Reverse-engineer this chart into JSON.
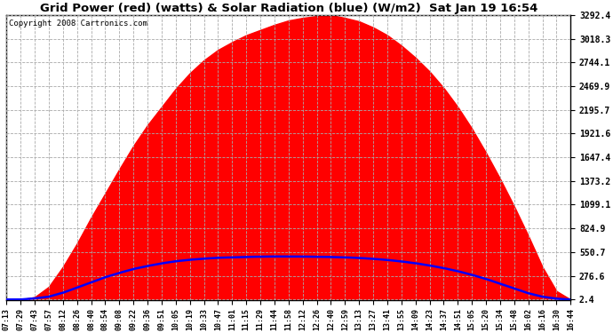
{
  "title": "Grid Power (red) (watts) & Solar Radiation (blue) (W/m2)  Sat Jan 19 16:54",
  "copyright": "Copyright 2008 Cartronics.com",
  "yticks": [
    2.4,
    276.6,
    550.7,
    824.9,
    1099.1,
    1373.2,
    1647.4,
    1921.6,
    2195.7,
    2469.9,
    2744.1,
    3018.3,
    3292.4
  ],
  "ymin": 0,
  "ymax": 3292.4,
  "x_labels": [
    "07:13",
    "07:29",
    "07:43",
    "07:57",
    "08:12",
    "08:26",
    "08:40",
    "08:54",
    "09:08",
    "09:22",
    "09:36",
    "09:51",
    "10:05",
    "10:19",
    "10:33",
    "10:47",
    "11:01",
    "11:15",
    "11:29",
    "11:44",
    "11:58",
    "12:12",
    "12:26",
    "12:40",
    "12:59",
    "13:13",
    "13:27",
    "13:41",
    "13:55",
    "14:09",
    "14:23",
    "14:37",
    "14:51",
    "15:05",
    "15:20",
    "15:34",
    "15:48",
    "16:02",
    "16:16",
    "16:30",
    "16:44"
  ],
  "bg_color": "#ffffff",
  "plot_bg_color": "#ffffff",
  "grid_color": "#cccccc",
  "red_color": "#ff0000",
  "blue_color": "#0000ff",
  "title_color": "#000000",
  "red_fill_alpha": 1.0,
  "red_vals": [
    2.4,
    2.4,
    30,
    150,
    380,
    650,
    950,
    1230,
    1510,
    1780,
    2020,
    2230,
    2440,
    2620,
    2770,
    2890,
    2980,
    3060,
    3120,
    3180,
    3230,
    3260,
    3280,
    3292,
    3260,
    3220,
    3150,
    3060,
    2940,
    2800,
    2640,
    2450,
    2230,
    1980,
    1700,
    1400,
    1080,
    740,
    380,
    100,
    2.4
  ],
  "blue_vals": [
    2.4,
    2.4,
    15,
    35,
    80,
    140,
    200,
    260,
    310,
    355,
    390,
    420,
    445,
    462,
    475,
    485,
    490,
    495,
    498,
    500,
    500,
    499,
    497,
    494,
    490,
    483,
    473,
    460,
    443,
    422,
    396,
    366,
    330,
    288,
    240,
    186,
    130,
    75,
    35,
    12,
    2.4
  ]
}
